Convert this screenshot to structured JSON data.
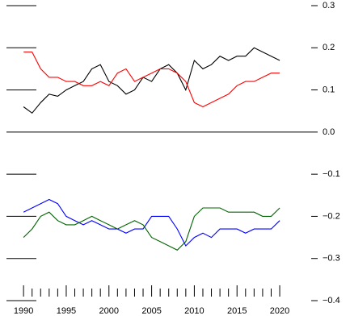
{
  "chart_data": {
    "type": "line",
    "x": [
      1990,
      1991,
      1992,
      1993,
      1994,
      1995,
      1996,
      1997,
      1998,
      1999,
      2000,
      2001,
      2002,
      2003,
      2004,
      2005,
      2006,
      2007,
      2008,
      2009,
      2010,
      2011,
      2012,
      2013,
      2014,
      2015,
      2016,
      2017,
      2018,
      2019,
      2020
    ],
    "series": [
      {
        "color": "#000000",
        "values": [
          0.06,
          0.045,
          0.07,
          0.09,
          0.085,
          0.1,
          0.11,
          0.12,
          0.15,
          0.16,
          0.12,
          0.11,
          0.09,
          0.1,
          0.13,
          0.12,
          0.15,
          0.16,
          0.14,
          0.1,
          0.17,
          0.15,
          0.16,
          0.18,
          0.17,
          0.18,
          0.18,
          0.2,
          0.19,
          0.18,
          0.17
        ]
      },
      {
        "color": "#ff0000",
        "values": [
          0.19,
          0.19,
          0.15,
          0.13,
          0.13,
          0.12,
          0.12,
          0.11,
          0.11,
          0.12,
          0.11,
          0.14,
          0.15,
          0.12,
          0.13,
          0.14,
          0.15,
          0.15,
          0.14,
          0.12,
          0.07,
          0.06,
          0.07,
          0.08,
          0.09,
          0.11,
          0.12,
          0.12,
          0.13,
          0.14,
          0.14
        ]
      },
      {
        "color": "#0000ff",
        "values": [
          -0.19,
          -0.18,
          -0.17,
          -0.16,
          -0.17,
          -0.2,
          -0.21,
          -0.22,
          -0.21,
          -0.22,
          -0.23,
          -0.23,
          -0.24,
          -0.23,
          -0.23,
          -0.2,
          -0.2,
          -0.2,
          -0.23,
          -0.27,
          -0.25,
          -0.24,
          -0.25,
          -0.23,
          -0.23,
          -0.23,
          -0.24,
          -0.23,
          -0.23,
          -0.23,
          -0.21
        ]
      },
      {
        "color": "#006400",
        "values": [
          -0.25,
          -0.23,
          -0.2,
          -0.19,
          -0.21,
          -0.22,
          -0.22,
          -0.21,
          -0.2,
          -0.21,
          -0.22,
          -0.23,
          -0.22,
          -0.21,
          -0.22,
          -0.25,
          -0.26,
          -0.27,
          -0.28,
          -0.26,
          -0.2,
          -0.18,
          -0.18,
          -0.18,
          -0.19,
          -0.19,
          -0.19,
          -0.19,
          -0.2,
          -0.2,
          -0.18
        ]
      }
    ],
    "xlim": [
      1988,
      2027
    ],
    "xticks": [
      1990,
      1995,
      2000,
      2005,
      2010,
      2015,
      2020
    ],
    "xticks_minor": [
      1991,
      1992,
      1993,
      1994,
      1996,
      1997,
      1998,
      1999,
      2001,
      2002,
      2003,
      2004,
      2006,
      2007,
      2008,
      2009,
      2011,
      2012,
      2013,
      2014,
      2016,
      2017,
      2018,
      2019
    ],
    "ylim": [
      -0.4,
      0.3
    ],
    "yticks": [
      0.3,
      0.2,
      0.1,
      {
        "value": 0,
        "label": "0.0"
      },
      {
        "value": -0.1,
        "label": "−0.1"
      },
      {
        "value": -0.2,
        "label": "−0.2"
      },
      {
        "value": -0.3,
        "label": "−0.3"
      },
      {
        "value": -0.4,
        "label": "−0.4"
      }
    ]
  }
}
